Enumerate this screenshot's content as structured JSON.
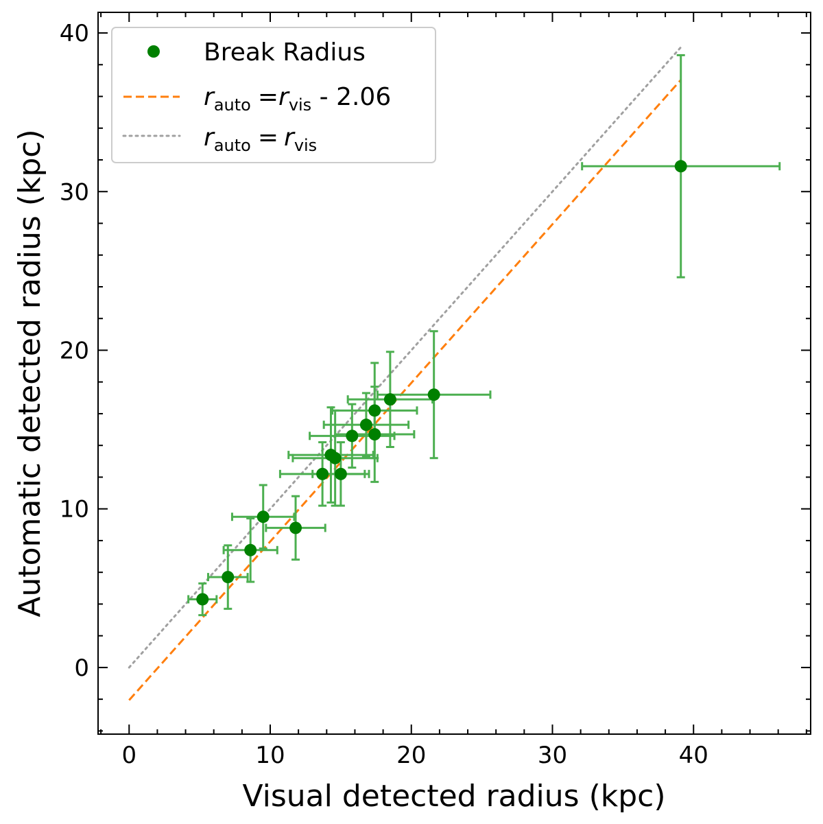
{
  "chart_data": {
    "type": "scatter",
    "xlabel": "Visual detected radius (kpc)",
    "ylabel": "Automatic detected radius (kpc)",
    "xlim": [
      -2.2,
      48.3
    ],
    "ylim": [
      -4.2,
      41.3
    ],
    "xticks": [
      0,
      10,
      20,
      30,
      40
    ],
    "xtick_labels": [
      "0",
      "10",
      "20",
      "30",
      "40"
    ],
    "yticks": [
      0,
      10,
      20,
      30,
      40
    ],
    "ytick_labels": [
      "0",
      "10",
      "20",
      "30",
      "40"
    ],
    "grid": false,
    "legend_position": "top-left",
    "colors": {
      "points": "#008000",
      "errorbars": "#4caf50",
      "fit_line": "#ff7f0e",
      "identity_line": "#a0a0a0"
    },
    "series": [
      {
        "name": "Break Radius",
        "kind": "scatter_errorbars",
        "points": [
          {
            "x": 5.2,
            "y": 4.3,
            "xerr": 1.0,
            "yerr": 1.0
          },
          {
            "x": 7.0,
            "y": 5.7,
            "xerr": 1.4,
            "yerr": 2.0
          },
          {
            "x": 8.6,
            "y": 7.4,
            "xerr": 1.9,
            "yerr": 2.0
          },
          {
            "x": 9.5,
            "y": 9.5,
            "xerr": 2.2,
            "yerr": 2.0
          },
          {
            "x": 11.8,
            "y": 8.8,
            "xerr": 2.1,
            "yerr": 2.0
          },
          {
            "x": 13.7,
            "y": 12.2,
            "xerr": 3.0,
            "yerr": 2.0
          },
          {
            "x": 14.3,
            "y": 13.4,
            "xerr": 3.0,
            "yerr": 3.0
          },
          {
            "x": 14.6,
            "y": 13.2,
            "xerr": 3.0,
            "yerr": 3.0
          },
          {
            "x": 15.0,
            "y": 12.2,
            "xerr": 2.0,
            "yerr": 2.0
          },
          {
            "x": 15.8,
            "y": 14.6,
            "xerr": 3.0,
            "yerr": 2.0
          },
          {
            "x": 16.8,
            "y": 15.3,
            "xerr": 3.0,
            "yerr": 2.0
          },
          {
            "x": 17.4,
            "y": 14.7,
            "xerr": 2.8,
            "yerr": 3.0
          },
          {
            "x": 17.4,
            "y": 16.2,
            "xerr": 3.0,
            "yerr": 3.0
          },
          {
            "x": 18.5,
            "y": 16.9,
            "xerr": 3.0,
            "yerr": 3.0
          },
          {
            "x": 21.6,
            "y": 17.2,
            "xerr": 4.0,
            "yerr": 4.0
          },
          {
            "x": 39.1,
            "y": 31.6,
            "xerr": 7.0,
            "yerr": 7.0
          }
        ]
      },
      {
        "name": "r_auto = r_vis - 2.06",
        "kind": "line",
        "style": "dashed",
        "x": [
          0,
          39.1
        ],
        "y": [
          -2.06,
          37.04
        ]
      },
      {
        "name": "r_auto = r_vis",
        "kind": "line",
        "style": "dotted",
        "x": [
          0,
          39.1
        ],
        "y": [
          0,
          39.1
        ]
      }
    ],
    "legend": {
      "entries": [
        {
          "kind": "marker",
          "main": "Break Radius"
        },
        {
          "kind": "dashed",
          "main_r": "r",
          "sub_auto": "auto",
          "eq": "=",
          "main_r2": "r",
          "sub_vis": "vis",
          "suffix": " - 2.06"
        },
        {
          "kind": "dotted",
          "main_r": "r",
          "sub_auto": "auto",
          "eq": "=",
          "main_r2": "r",
          "sub_vis": "vis",
          "suffix": ""
        }
      ]
    }
  }
}
